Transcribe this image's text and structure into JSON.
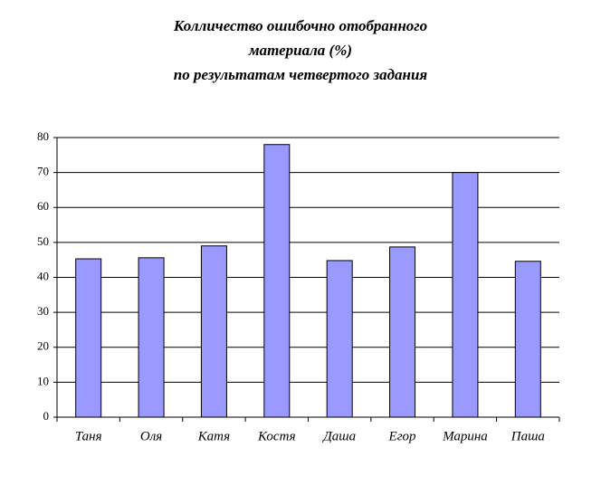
{
  "chart_data": {
    "type": "bar",
    "title": [
      "Колличество ошибочно отобранного",
      "материала (%)",
      "по результатам четвертого задания"
    ],
    "categories": [
      "Таня",
      "Оля",
      "Катя",
      "Костя",
      "Даша",
      "Егор",
      "Марина",
      "Паша"
    ],
    "values": [
      45.3,
      45.6,
      49,
      78,
      44.8,
      48.7,
      70,
      44.6
    ],
    "color": "#9999ff",
    "ylim": [
      0,
      80
    ],
    "yticks": [
      0,
      10,
      20,
      30,
      40,
      50,
      60,
      70,
      80
    ],
    "grid": true
  }
}
